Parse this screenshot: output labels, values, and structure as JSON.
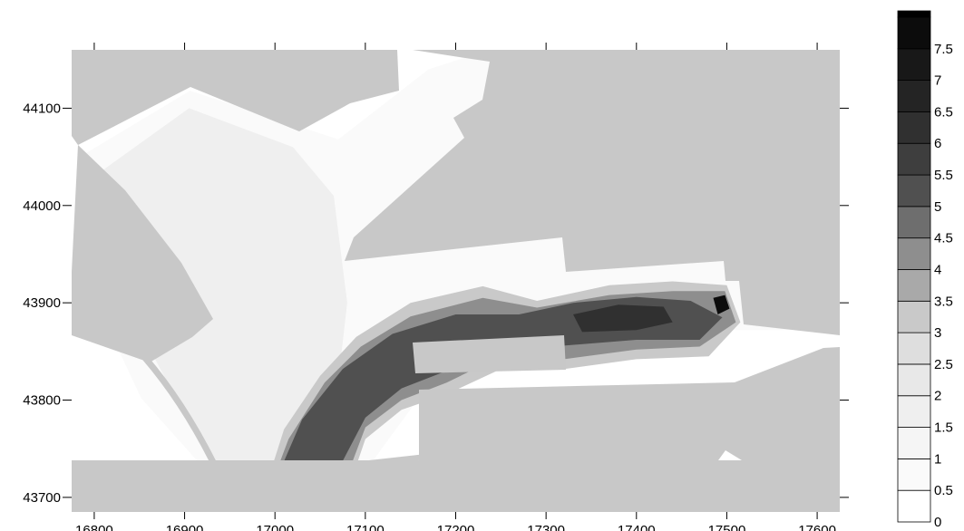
{
  "chart_data": {
    "type": "heatmap",
    "title": "",
    "xlabel": "",
    "ylabel": "",
    "xlim": [
      16775,
      17625
    ],
    "ylim": [
      43685,
      44160
    ],
    "x_ticks": [
      16800,
      16900,
      17000,
      17100,
      17200,
      17300,
      17400,
      17500,
      17600
    ],
    "y_ticks": [
      43700,
      43800,
      43900,
      44000,
      44100
    ],
    "grid": false,
    "colorbar": {
      "placement": "right",
      "levels": [
        0,
        0.5,
        1,
        1.5,
        2,
        2.5,
        3,
        3.5,
        4,
        4.5,
        5,
        5.5,
        6,
        6.5,
        7,
        7.5
      ],
      "tick_labels": [
        "0",
        "0.5",
        "1",
        "1.5",
        "2",
        "2.5",
        "3",
        "3.5",
        "4",
        "4.5",
        "5",
        "5.5",
        "6",
        "6.5",
        "7",
        "7.5"
      ],
      "colors": [
        "#ffffff",
        "#fafafa",
        "#f5f5f5",
        "#efefef",
        "#e8e8e8",
        "#dedede",
        "#c9c9c9",
        "#a9a9a9",
        "#8e8e8e",
        "#6e6e6e",
        "#505050",
        "#3e3e3e",
        "#303030",
        "#242424",
        "#181818",
        "#0c0c0c"
      ]
    },
    "land_color": "#c8c8c8",
    "regions": [
      {
        "level": 0.5,
        "points": [
          [
            16784,
            44050
          ],
          [
            16906,
            44118
          ],
          [
            17070,
            44068
          ],
          [
            17170,
            44140
          ],
          [
            17237,
            44160
          ],
          [
            17620,
            44160
          ],
          [
            17620,
            43872
          ],
          [
            17505,
            43872
          ],
          [
            17470,
            43855
          ],
          [
            17250,
            43835
          ],
          [
            17160,
            43803
          ],
          [
            17118,
            43750
          ],
          [
            17080,
            43700
          ],
          [
            16950,
            43700
          ],
          [
            16852,
            43802
          ],
          [
            16800,
            43905
          ]
        ]
      },
      {
        "level": 1.5,
        "points": [
          [
            16800,
            44030
          ],
          [
            16905,
            44100
          ],
          [
            17020,
            44060
          ],
          [
            17065,
            44010
          ],
          [
            17080,
            43900
          ],
          [
            17070,
            43820
          ],
          [
            17045,
            43780
          ],
          [
            17020,
            43740
          ],
          [
            17000,
            43705
          ],
          [
            16955,
            43705
          ],
          [
            16920,
            43760
          ],
          [
            16880,
            43820
          ],
          [
            16840,
            43890
          ],
          [
            16810,
            43960
          ]
        ]
      },
      {
        "level": 3,
        "points": [
          [
            16986,
            43700
          ],
          [
            17010,
            43770
          ],
          [
            17050,
            43825
          ],
          [
            17090,
            43865
          ],
          [
            17150,
            43900
          ],
          [
            17230,
            43917
          ],
          [
            17290,
            43902
          ],
          [
            17370,
            43918
          ],
          [
            17440,
            43922
          ],
          [
            17500,
            43918
          ],
          [
            17515,
            43880
          ],
          [
            17480,
            43845
          ],
          [
            17400,
            43842
          ],
          [
            17320,
            43832
          ],
          [
            17250,
            43832
          ],
          [
            17190,
            43806
          ],
          [
            17140,
            43790
          ],
          [
            17100,
            43760
          ],
          [
            17078,
            43700
          ]
        ]
      },
      {
        "level": 4,
        "points": [
          [
            16992,
            43703
          ],
          [
            17015,
            43760
          ],
          [
            17055,
            43818
          ],
          [
            17095,
            43855
          ],
          [
            17150,
            43886
          ],
          [
            17230,
            43905
          ],
          [
            17290,
            43895
          ],
          [
            17370,
            43908
          ],
          [
            17440,
            43912
          ],
          [
            17498,
            43912
          ],
          [
            17510,
            43880
          ],
          [
            17470,
            43855
          ],
          [
            17400,
            43852
          ],
          [
            17320,
            43842
          ],
          [
            17250,
            43845
          ],
          [
            17190,
            43818
          ],
          [
            17140,
            43800
          ],
          [
            17100,
            43772
          ],
          [
            17072,
            43703
          ]
        ]
      },
      {
        "level": 5,
        "points": [
          [
            17002,
            43720
          ],
          [
            17030,
            43780
          ],
          [
            17075,
            43832
          ],
          [
            17130,
            43868
          ],
          [
            17200,
            43888
          ],
          [
            17270,
            43888
          ],
          [
            17330,
            43900
          ],
          [
            17400,
            43906
          ],
          [
            17460,
            43902
          ],
          [
            17495,
            43885
          ],
          [
            17470,
            43862
          ],
          [
            17400,
            43862
          ],
          [
            17320,
            43856
          ],
          [
            17250,
            43858
          ],
          [
            17190,
            43830
          ],
          [
            17140,
            43812
          ],
          [
            17100,
            43782
          ],
          [
            17064,
            43718
          ]
        ]
      },
      {
        "level": 6,
        "points": [
          [
            17330,
            43888
          ],
          [
            17380,
            43898
          ],
          [
            17430,
            43896
          ],
          [
            17440,
            43880
          ],
          [
            17400,
            43872
          ],
          [
            17340,
            43870
          ]
        ]
      },
      {
        "level": 7.5,
        "points": [
          [
            17485,
            43905
          ],
          [
            17498,
            43908
          ],
          [
            17503,
            43894
          ],
          [
            17490,
            43888
          ]
        ]
      }
    ]
  }
}
